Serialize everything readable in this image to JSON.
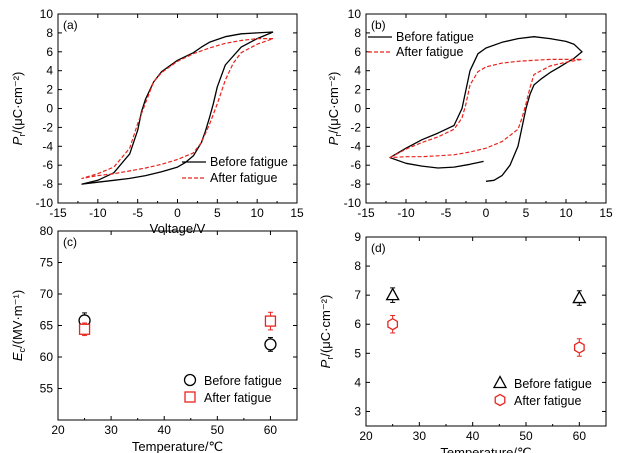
{
  "colors": {
    "before": "#000000",
    "after": "#e8241e"
  },
  "chart_data": [
    {
      "panel": "(a)",
      "type": "line",
      "title": "",
      "xlabel": "Voltage/V",
      "ylabel": "Pr/(μC·cm⁻²)",
      "xlim": [
        -15,
        15
      ],
      "ylim": [
        -10,
        10
      ],
      "xticks": [
        -15,
        -10,
        -5,
        0,
        5,
        10,
        15
      ],
      "yticks": [
        -10,
        -8,
        -6,
        -4,
        -2,
        0,
        2,
        4,
        6,
        8,
        10
      ],
      "legend": {
        "position": "bottom-right",
        "entries": [
          "Before fatigue",
          "After fatigue"
        ]
      },
      "series": [
        {
          "name": "Before fatigue",
          "style": "solid",
          "color": "#000000",
          "x": [
            12,
            10,
            8,
            6,
            5,
            4,
            3,
            2,
            0,
            -2,
            -3,
            -4,
            -4.5,
            -5,
            -6,
            -8,
            -10,
            -12,
            -10,
            -8,
            -6,
            -4,
            -2,
            0,
            1,
            2,
            3,
            3.5,
            4,
            4.5,
            5,
            6,
            8,
            10,
            12
          ],
          "y": [
            8.1,
            8.0,
            7.9,
            7.6,
            7.3,
            7.0,
            6.5,
            5.9,
            5.1,
            3.9,
            2.8,
            1.0,
            -0.3,
            -2.3,
            -4.8,
            -6.8,
            -7.6,
            -8.0,
            -7.8,
            -7.6,
            -7.4,
            -7.1,
            -6.7,
            -6.2,
            -5.7,
            -5.0,
            -3.6,
            -2.4,
            -1.0,
            0.5,
            2.3,
            4.6,
            6.5,
            7.4,
            8.1
          ]
        },
        {
          "name": "After fatigue",
          "style": "dashed",
          "color": "#e8241e",
          "x": [
            12,
            10,
            8,
            6,
            4,
            2,
            0,
            -2,
            -3,
            -4,
            -5,
            -5.5,
            -6,
            -8,
            -10,
            -12,
            -10,
            -8,
            -6,
            -4,
            -2,
            0,
            2,
            3,
            4,
            5,
            6,
            7,
            8,
            10,
            12
          ],
          "y": [
            7.4,
            7.4,
            7.2,
            6.9,
            6.4,
            5.8,
            5.0,
            3.8,
            2.8,
            0.6,
            -1.6,
            -2.9,
            -4.2,
            -6.2,
            -6.9,
            -7.4,
            -7.1,
            -6.9,
            -6.6,
            -6.3,
            -5.9,
            -5.4,
            -4.7,
            -3.6,
            -1.7,
            0.5,
            3.0,
            4.8,
            5.9,
            6.8,
            7.4
          ]
        }
      ]
    },
    {
      "panel": "(b)",
      "type": "line",
      "title": "",
      "xlabel": "",
      "ylabel": "Pr/(μC·cm⁻²)",
      "xlim": [
        -15,
        15
      ],
      "ylim": [
        -10,
        10
      ],
      "xticks": [
        -15,
        -10,
        -5,
        0,
        5,
        10,
        15
      ],
      "yticks": [
        -10,
        -8,
        -6,
        -4,
        -2,
        0,
        2,
        4,
        6,
        8,
        10
      ],
      "legend": {
        "position": "top-left",
        "entries": [
          "Before fatigue",
          "After fatigue"
        ]
      },
      "series": [
        {
          "name": "Before fatigue",
          "style": "solid",
          "color": "#000000",
          "x": [
            0,
            1,
            2,
            3,
            4,
            4.5,
            5,
            5.5,
            6,
            7,
            8,
            9,
            10,
            11,
            12,
            11,
            10,
            8,
            6,
            4,
            2,
            0,
            -1,
            -2,
            -2.5,
            -3,
            -4,
            -6,
            -8,
            -10,
            -12,
            -10,
            -8,
            -6,
            -4,
            -2,
            -0.3
          ],
          "y": [
            -7.7,
            -7.6,
            -7.1,
            -6.0,
            -4.0,
            -2.0,
            0.0,
            1.5,
            2.5,
            3.2,
            3.8,
            4.3,
            4.8,
            5.3,
            6.0,
            6.8,
            7.1,
            7.4,
            7.6,
            7.4,
            7.0,
            6.4,
            5.8,
            4.0,
            2.0,
            0.0,
            -1.8,
            -2.6,
            -3.3,
            -4.2,
            -5.2,
            -5.8,
            -6.1,
            -6.3,
            -6.2,
            -5.9,
            -5.6
          ]
        },
        {
          "name": "After fatigue",
          "style": "dashed",
          "color": "#e8241e",
          "x": [
            -12,
            -10,
            -8,
            -6,
            -4,
            -3,
            -2.5,
            -2,
            -1,
            0,
            2,
            4,
            6,
            8,
            10,
            12,
            10,
            8,
            6,
            5.5,
            5,
            4.5,
            4,
            2,
            0,
            -2,
            -4,
            -6,
            -8,
            -10,
            -12
          ],
          "y": [
            -5.2,
            -4.3,
            -3.6,
            -3.0,
            -2.2,
            -1.0,
            0.5,
            2.5,
            3.9,
            4.4,
            4.8,
            5.0,
            5.1,
            5.2,
            5.2,
            5.2,
            4.9,
            4.5,
            3.6,
            2.2,
            0.5,
            -1.0,
            -2.2,
            -3.5,
            -4.2,
            -4.6,
            -4.9,
            -5.0,
            -5.1,
            -5.1,
            -5.2
          ]
        }
      ]
    },
    {
      "panel": "(c)",
      "type": "scatter",
      "title": "",
      "xlabel": "Temperature/℃",
      "ylabel": "Ec/(MV·m⁻¹)",
      "xlim": [
        20,
        65
      ],
      "ylim": [
        50,
        80
      ],
      "xticks": [
        20,
        30,
        40,
        50,
        60
      ],
      "yticks": [
        55,
        60,
        65,
        70,
        75,
        80
      ],
      "legend": {
        "position": "bottom-right",
        "entries": [
          "Before fatigue",
          "After fatigue"
        ]
      },
      "series": [
        {
          "name": "Before fatigue",
          "marker": "circle",
          "color": "#000000",
          "x": [
            25,
            60
          ],
          "y": [
            65.8,
            62.0
          ],
          "err": [
            1.2,
            1.1
          ]
        },
        {
          "name": "After fatigue",
          "marker": "square",
          "color": "#e8241e",
          "x": [
            25,
            60
          ],
          "y": [
            64.4,
            65.7
          ],
          "err": [
            1.0,
            1.4
          ]
        }
      ]
    },
    {
      "panel": "(d)",
      "type": "scatter",
      "title": "",
      "xlabel": "Temperature/℃",
      "ylabel": "Pr/(μC·cm⁻²)",
      "xlim": [
        20,
        65
      ],
      "ylim": [
        2.5,
        9
      ],
      "xticks": [
        20,
        30,
        40,
        50,
        60
      ],
      "yticks": [
        3,
        4,
        5,
        6,
        7,
        8,
        9
      ],
      "legend": {
        "position": "bottom-right",
        "entries": [
          "Before fatigue",
          "After fatigue"
        ]
      },
      "series": [
        {
          "name": "Before fatigue",
          "marker": "triangle",
          "color": "#000000",
          "x": [
            25,
            60
          ],
          "y": [
            7.0,
            6.9
          ],
          "err": [
            0.25,
            0.25
          ]
        },
        {
          "name": "After fatigue",
          "marker": "hexagon",
          "color": "#e8241e",
          "x": [
            25,
            60
          ],
          "y": [
            6.0,
            5.2
          ],
          "err": [
            0.3,
            0.3
          ]
        }
      ]
    }
  ]
}
